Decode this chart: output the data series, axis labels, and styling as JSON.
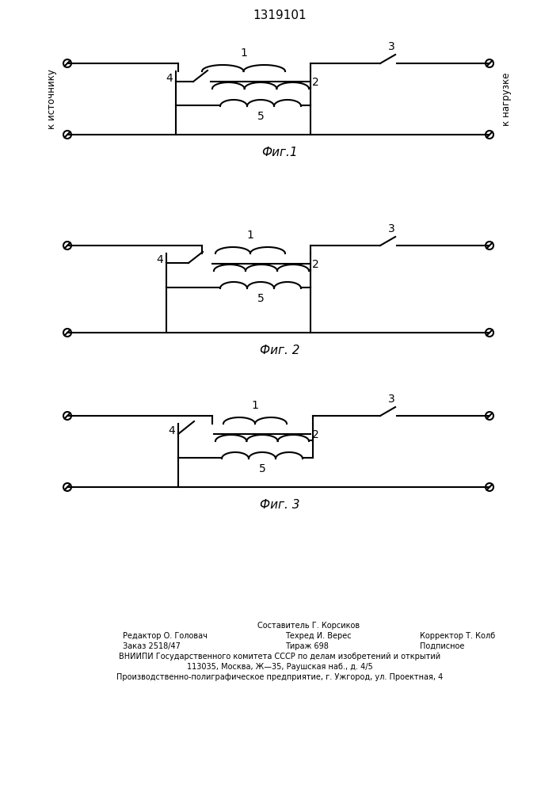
{
  "title": "1319101",
  "background_color": "#ffffff",
  "fig_width": 7.07,
  "fig_height": 10.0,
  "footer_line1": "Составитель Г. Корсиков",
  "footer_line2_left": "Редактор О. Головач",
  "footer_line2_mid": "Техред И. Верес",
  "footer_line2_right": "Корректор Т. Колб",
  "footer_line3_left": "Заказ 2518/47",
  "footer_line3_mid": "Тираж 698",
  "footer_line3_right": "Подписное",
  "footer_line4": "ВНИИПИ Государственного комитета СССР по делам изобретений и открытий",
  "footer_line5": "113035, Москва, Ж—35, Раушская наб., д. 4/5",
  "footer_line6": "Производственно-полиграфическое предприятие, г. Ужгород, ул. Проектная, 4",
  "fig1_caption": "Фиг.1",
  "fig2_caption": "Фиг. 2",
  "fig3_caption": "Фиг. 3",
  "label_source": "к источнику",
  "label_load": "к нагрузке"
}
